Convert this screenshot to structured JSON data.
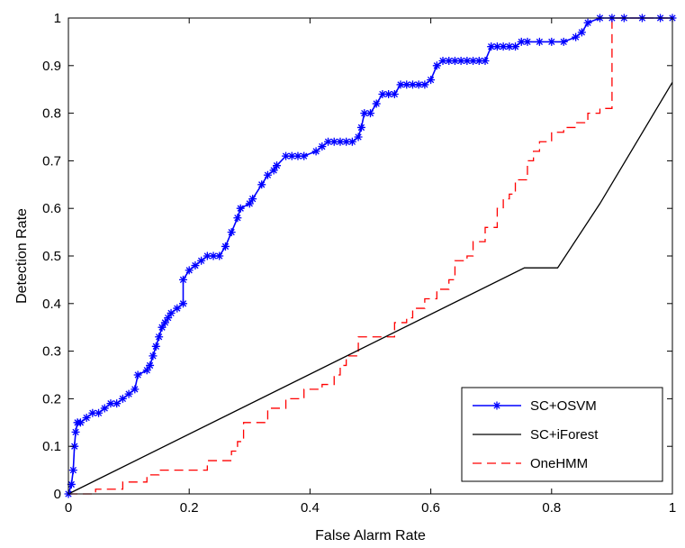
{
  "chart_data": {
    "type": "line",
    "title": "",
    "xlabel": "False Alarm Rate",
    "ylabel": "Detection Rate",
    "xlim": [
      0,
      1
    ],
    "ylim": [
      0,
      1
    ],
    "xticks": [
      0,
      0.2,
      0.4,
      0.6,
      0.8,
      1
    ],
    "xtick_labels": [
      "0",
      "0.2",
      "0.4",
      "0.6",
      "0.8",
      "1"
    ],
    "yticks": [
      0,
      0.1,
      0.2,
      0.3,
      0.4,
      0.5,
      0.6,
      0.7,
      0.8,
      0.9,
      1
    ],
    "ytick_labels": [
      "0",
      "0.1",
      "0.2",
      "0.3",
      "0.4",
      "0.5",
      "0.6",
      "0.7",
      "0.8",
      "0.9",
      "1"
    ],
    "grid": false,
    "legend_position": "bottom-right",
    "series": [
      {
        "name": "SC+OSVM",
        "color": "#0000ff",
        "line_style": "solid",
        "marker": "asterisk",
        "x": [
          0,
          0.005,
          0.008,
          0.01,
          0.012,
          0.015,
          0.02,
          0.03,
          0.04,
          0.05,
          0.06,
          0.07,
          0.08,
          0.09,
          0.1,
          0.11,
          0.115,
          0.13,
          0.135,
          0.14,
          0.145,
          0.15,
          0.155,
          0.16,
          0.165,
          0.17,
          0.18,
          0.19,
          0.19,
          0.2,
          0.21,
          0.22,
          0.23,
          0.24,
          0.25,
          0.26,
          0.27,
          0.28,
          0.285,
          0.3,
          0.305,
          0.32,
          0.33,
          0.34,
          0.345,
          0.36,
          0.37,
          0.38,
          0.39,
          0.41,
          0.42,
          0.43,
          0.44,
          0.45,
          0.46,
          0.47,
          0.48,
          0.485,
          0.49,
          0.5,
          0.51,
          0.52,
          0.53,
          0.54,
          0.55,
          0.56,
          0.57,
          0.58,
          0.59,
          0.6,
          0.61,
          0.62,
          0.63,
          0.64,
          0.65,
          0.66,
          0.67,
          0.68,
          0.69,
          0.7,
          0.71,
          0.72,
          0.73,
          0.74,
          0.75,
          0.76,
          0.78,
          0.8,
          0.82,
          0.84,
          0.85,
          0.86,
          0.88,
          0.9,
          0.92,
          0.95,
          0.98,
          1.0
        ],
        "y": [
          0,
          0.02,
          0.05,
          0.1,
          0.13,
          0.15,
          0.15,
          0.16,
          0.17,
          0.17,
          0.18,
          0.19,
          0.19,
          0.2,
          0.21,
          0.22,
          0.25,
          0.26,
          0.27,
          0.29,
          0.31,
          0.33,
          0.35,
          0.36,
          0.37,
          0.38,
          0.39,
          0.4,
          0.45,
          0.47,
          0.48,
          0.49,
          0.5,
          0.5,
          0.5,
          0.52,
          0.55,
          0.58,
          0.6,
          0.61,
          0.62,
          0.65,
          0.67,
          0.68,
          0.69,
          0.71,
          0.71,
          0.71,
          0.71,
          0.72,
          0.73,
          0.74,
          0.74,
          0.74,
          0.74,
          0.74,
          0.75,
          0.77,
          0.8,
          0.8,
          0.82,
          0.84,
          0.84,
          0.84,
          0.86,
          0.86,
          0.86,
          0.86,
          0.86,
          0.87,
          0.9,
          0.91,
          0.91,
          0.91,
          0.91,
          0.91,
          0.91,
          0.91,
          0.91,
          0.94,
          0.94,
          0.94,
          0.94,
          0.94,
          0.95,
          0.95,
          0.95,
          0.95,
          0.95,
          0.96,
          0.97,
          0.99,
          1.0,
          1.0,
          1.0,
          1.0,
          1.0,
          1.0
        ]
      },
      {
        "name": "SC+iForest",
        "color": "#000000",
        "line_style": "solid",
        "marker": "none",
        "x": [
          0,
          0.755,
          0.81,
          0.88,
          1.0
        ],
        "y": [
          0,
          0.475,
          0.475,
          0.61,
          0.865
        ]
      },
      {
        "name": "OneHMM",
        "color": "#ff0000",
        "line_style": "dashed",
        "marker": "none",
        "x": [
          0,
          0.045,
          0.045,
          0.09,
          0.09,
          0.13,
          0.13,
          0.15,
          0.15,
          0.23,
          0.23,
          0.27,
          0.27,
          0.28,
          0.28,
          0.29,
          0.29,
          0.33,
          0.33,
          0.36,
          0.36,
          0.39,
          0.39,
          0.42,
          0.42,
          0.44,
          0.44,
          0.45,
          0.45,
          0.46,
          0.46,
          0.48,
          0.48,
          0.54,
          0.54,
          0.56,
          0.56,
          0.57,
          0.57,
          0.59,
          0.59,
          0.61,
          0.61,
          0.63,
          0.63,
          0.64,
          0.64,
          0.66,
          0.66,
          0.67,
          0.67,
          0.69,
          0.69,
          0.71,
          0.71,
          0.72,
          0.72,
          0.73,
          0.73,
          0.74,
          0.74,
          0.76,
          0.76,
          0.77,
          0.77,
          0.78,
          0.78,
          0.8,
          0.8,
          0.82,
          0.82,
          0.84,
          0.84,
          0.86,
          0.86,
          0.88,
          0.88,
          0.9,
          0.9,
          0.92,
          0.92,
          0.94,
          0.94,
          0.96,
          0.96,
          1.0
        ],
        "y": [
          0,
          0,
          0.01,
          0.01,
          0.025,
          0.025,
          0.04,
          0.04,
          0.05,
          0.05,
          0.07,
          0.07,
          0.09,
          0.09,
          0.11,
          0.11,
          0.15,
          0.15,
          0.18,
          0.18,
          0.2,
          0.2,
          0.22,
          0.22,
          0.23,
          0.23,
          0.25,
          0.25,
          0.27,
          0.27,
          0.29,
          0.29,
          0.33,
          0.33,
          0.36,
          0.36,
          0.37,
          0.37,
          0.39,
          0.39,
          0.41,
          0.41,
          0.43,
          0.43,
          0.45,
          0.45,
          0.49,
          0.49,
          0.5,
          0.5,
          0.53,
          0.53,
          0.56,
          0.56,
          0.6,
          0.6,
          0.62,
          0.62,
          0.63,
          0.63,
          0.66,
          0.66,
          0.7,
          0.7,
          0.72,
          0.72,
          0.74,
          0.74,
          0.76,
          0.76,
          0.77,
          0.77,
          0.78,
          0.78,
          0.8,
          0.8,
          0.81,
          0.81,
          1.0,
          1.0,
          1.0,
          1.0,
          1.0,
          1.0,
          1.0,
          1.0
        ]
      }
    ]
  }
}
